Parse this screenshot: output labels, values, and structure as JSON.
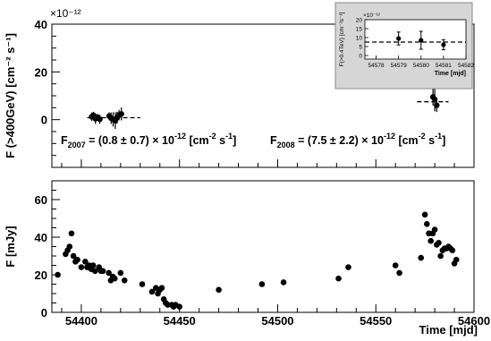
{
  "chart_data": [
    {
      "type": "scatter",
      "title": "",
      "ylabel": "F (>400GeV) [cm⁻² s⁻¹]",
      "y_scale_label": "×10⁻¹²",
      "xlim": [
        54385,
        54600
      ],
      "ylim": [
        -20,
        40
      ],
      "y_ticks": [
        0,
        20,
        40
      ],
      "x_ticks": [
        54400,
        54450,
        54500,
        54550,
        54600
      ],
      "grid": false,
      "series": [
        {
          "points": [
            {
              "x": 54405.3,
              "y": 1.2,
              "err": 1.8
            },
            {
              "x": 54406.2,
              "y": 1.8,
              "err": 1.5
            },
            {
              "x": 54407.2,
              "y": 0.4,
              "err": 2.2
            },
            {
              "x": 54408.2,
              "y": 1.0,
              "err": 1.4
            },
            {
              "x": 54409.4,
              "y": 0.2,
              "err": 1.9
            },
            {
              "x": 54414.2,
              "y": 1.5,
              "err": 1.6
            },
            {
              "x": 54415.2,
              "y": 0.6,
              "err": 2.4
            },
            {
              "x": 54416.2,
              "y": 0.1,
              "err": 3.0
            },
            {
              "x": 54417.3,
              "y": -0.4,
              "err": 3.5
            },
            {
              "x": 54418.2,
              "y": 0.8,
              "err": 2.5
            },
            {
              "x": 54419.2,
              "y": 1.9,
              "err": 2.2
            },
            {
              "x": 54420.4,
              "y": 2.4,
              "err": 2.7
            },
            {
              "x": 54579.1,
              "y": 9.5,
              "err": 3.6
            },
            {
              "x": 54580.0,
              "y": 8.5,
              "err": 5.0
            },
            {
              "x": 54581.0,
              "y": 6.0,
              "err": 2.8
            }
          ]
        }
      ],
      "fits": [
        {
          "x_range": [
            54403,
            54430
          ],
          "y": 0.8
        },
        {
          "x_range": [
            54571,
            54587
          ],
          "y": 7.5
        }
      ],
      "annotations": [
        {
          "base": "F",
          "sub": "2007",
          "text": " = (0.8 ± 0.7) × 10",
          "sup": "-12",
          "unit": " [cm",
          "unit_sup": "-2",
          "unit_end": " s",
          "unit_end_sup": "-1",
          "close": "]"
        },
        {
          "base": "F",
          "sub": "2008",
          "text": " = (7.5 ± 2.2) × 10",
          "sup": "-12",
          "unit": " [cm",
          "unit_sup": "-2",
          "unit_end": " s",
          "unit_end_sup": "-1",
          "close": "]"
        }
      ]
    },
    {
      "type": "scatter",
      "title": "",
      "ylabel": "F(>0.4TeV) [cm⁻²s⁻¹]",
      "y_scale_label": "×10⁻¹²",
      "xlabel": "Time [mjd]",
      "xlim": [
        54577.5,
        54582
      ],
      "ylim": [
        -2,
        20
      ],
      "y_ticks": [
        0,
        5,
        10,
        15,
        20
      ],
      "x_ticks": [
        54578,
        54579,
        54580,
        54581,
        54582
      ],
      "grid": false,
      "series": [
        {
          "points": [
            {
              "x": 54579.0,
              "y": 9.5,
              "err": 3.6
            },
            {
              "x": 54580.0,
              "y": 8.5,
              "err": 5.0
            },
            {
              "x": 54581.0,
              "y": 6.0,
              "err": 2.8
            }
          ]
        }
      ],
      "fits": [
        {
          "x_range": [
            54577.5,
            54582
          ],
          "y": 7.5
        }
      ]
    },
    {
      "type": "scatter",
      "title": "",
      "ylabel": "F [mJy]",
      "xlabel": "Time [mjd]",
      "xlim": [
        54385,
        54600
      ],
      "ylim": [
        0,
        70
      ],
      "y_ticks": [
        0,
        20,
        40,
        60
      ],
      "x_ticks": [
        54400,
        54450,
        54500,
        54550,
        54600
      ],
      "grid": false,
      "series": [
        {
          "x": [
            54388,
            54392,
            54393,
            54394,
            54395,
            54396,
            54397,
            54398,
            54400,
            54402,
            54403,
            54404,
            54405,
            54406,
            54407,
            54409,
            54410,
            54411,
            54414,
            54415,
            54416,
            54417,
            54420,
            54422,
            54431,
            54436,
            54438,
            54439,
            54440,
            54441,
            54442,
            54443,
            54444,
            54446,
            54447,
            54448,
            54450,
            54470,
            54492,
            54503,
            54531,
            54536,
            54560,
            54562,
            54573,
            54575,
            54576,
            54577,
            54578,
            54579,
            54580,
            54581,
            54582,
            54583,
            54584,
            54585,
            54586,
            54587,
            54588,
            54589,
            54590,
            54591
          ],
          "y": [
            20,
            31,
            33,
            35,
            42,
            30,
            27,
            28,
            24,
            27,
            24,
            25,
            23,
            25,
            22,
            24,
            22,
            22,
            21,
            17,
            19,
            18,
            21,
            17,
            15,
            11,
            13,
            10,
            12,
            13,
            7,
            5,
            4,
            4,
            3,
            4,
            3,
            12,
            15,
            16,
            18,
            24,
            25,
            21,
            29,
            52,
            47,
            42,
            38,
            42,
            44,
            36,
            37,
            30,
            33,
            34,
            34,
            35,
            34,
            33,
            26,
            28
          ]
        }
      ]
    }
  ]
}
